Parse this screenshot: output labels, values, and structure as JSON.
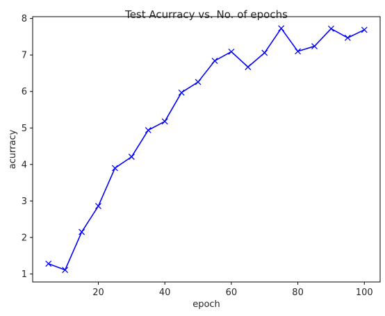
{
  "chart_data": {
    "type": "line",
    "title": "Test Acurracy vs. No. of epochs",
    "xlabel": "epoch",
    "ylabel": "acurracy",
    "xlim": [
      0.25,
      104.75
    ],
    "ylim": [
      0.78,
      8.05
    ],
    "xticks": [
      20,
      40,
      60,
      80,
      100
    ],
    "yticks": [
      1,
      2,
      3,
      4,
      5,
      6,
      7,
      8
    ],
    "grid": false,
    "legend": "none",
    "marker": "x",
    "color": "#0000ff",
    "x": [
      5,
      10,
      15,
      20,
      25,
      30,
      35,
      40,
      45,
      50,
      55,
      60,
      65,
      70,
      75,
      80,
      85,
      90,
      95,
      100
    ],
    "y": [
      1.28,
      1.11,
      2.15,
      2.86,
      3.9,
      4.21,
      4.94,
      5.18,
      5.97,
      6.26,
      6.84,
      7.09,
      6.67,
      7.06,
      7.73,
      7.1,
      7.24,
      7.72,
      7.47,
      7.69
    ]
  }
}
